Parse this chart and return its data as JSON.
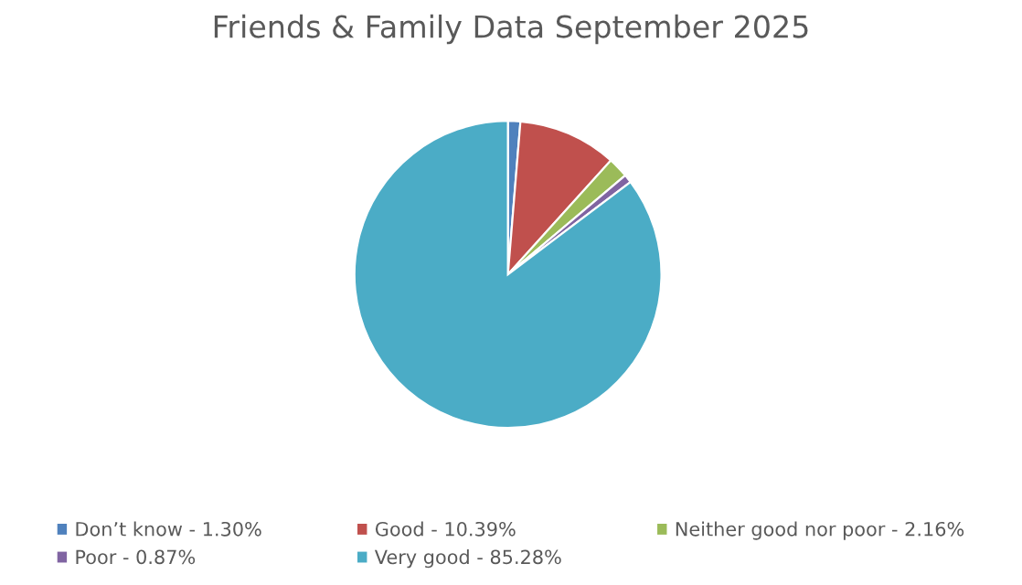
{
  "chart_data": {
    "type": "pie",
    "title": "Friends & Family Data September 2025",
    "categories": [
      "Don’t know - 1.30%",
      "Good - 10.39%",
      "Neither good nor poor - 2.16%",
      "Poor - 0.87%",
      "Very good - 85.28%"
    ],
    "values": [
      1.3,
      10.39,
      2.16,
      0.87,
      85.28
    ],
    "colors": [
      "#4f81bd",
      "#c0504d",
      "#9bbb59",
      "#8064a2",
      "#4bacc6"
    ],
    "legend": "bottom"
  }
}
